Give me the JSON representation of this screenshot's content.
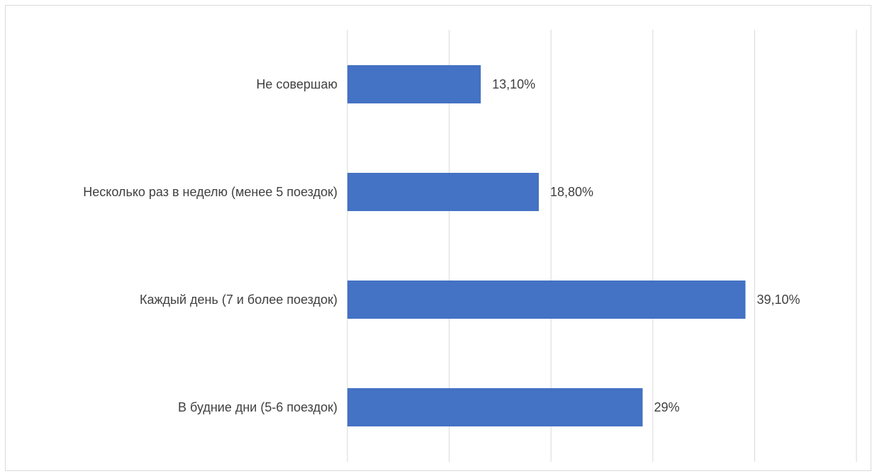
{
  "chart_data": {
    "type": "bar",
    "orientation": "horizontal",
    "categories": [
      "Не совершаю",
      "Несколько раз в неделю (менее 5 поездок)",
      "Каждый день (7 и более поездок)",
      "В будние дни (5-6 поездок)"
    ],
    "values": [
      13.1,
      18.8,
      39.1,
      29
    ],
    "value_labels": [
      "13,10%",
      "18,80%",
      "39,10%",
      "29%"
    ],
    "unit": "%",
    "xlim": [
      0,
      50
    ],
    "gridlines": true,
    "axis_tick_labels_visible": false,
    "title": "",
    "xlabel": "",
    "ylabel": "",
    "bar_color": "#4472C4",
    "gridline_color": "#d9d9d9",
    "label_color": "#404040"
  }
}
